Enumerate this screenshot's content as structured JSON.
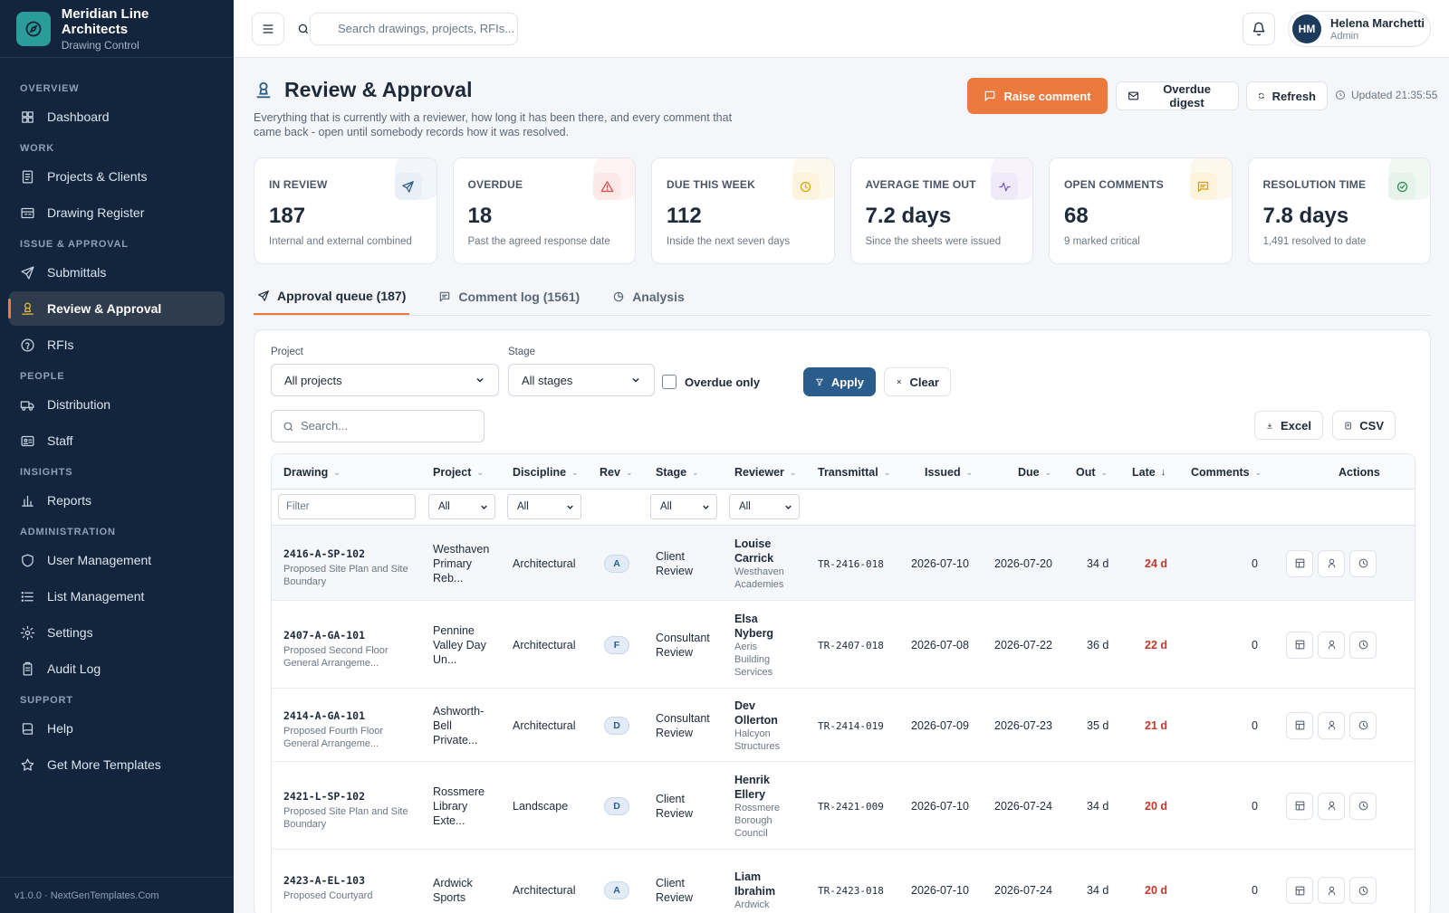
{
  "brand": {
    "title": "Meridian Line Architects",
    "subtitle": "Drawing Control"
  },
  "sidebar": {
    "sections": [
      {
        "label": "OVERVIEW",
        "items": [
          {
            "label": "Dashboard",
            "icon": "dashboard-icon"
          }
        ]
      },
      {
        "label": "WORK",
        "items": [
          {
            "label": "Projects & Clients",
            "icon": "projects-icon"
          },
          {
            "label": "Drawing Register",
            "icon": "register-icon"
          }
        ]
      },
      {
        "label": "ISSUE & APPROVAL",
        "items": [
          {
            "label": "Submittals",
            "icon": "send-icon"
          },
          {
            "label": "Review & Approval",
            "icon": "stamp-icon",
            "active": true
          },
          {
            "label": "RFIs",
            "icon": "help-circle-icon"
          }
        ]
      },
      {
        "label": "PEOPLE",
        "items": [
          {
            "label": "Distribution",
            "icon": "truck-icon"
          },
          {
            "label": "Staff",
            "icon": "id-card-icon"
          }
        ]
      },
      {
        "label": "INSIGHTS",
        "items": [
          {
            "label": "Reports",
            "icon": "bar-chart-icon"
          }
        ]
      },
      {
        "label": "ADMINISTRATION",
        "items": [
          {
            "label": "User Management",
            "icon": "shield-icon"
          },
          {
            "label": "List Management",
            "icon": "list-icon"
          },
          {
            "label": "Settings",
            "icon": "gear-icon"
          },
          {
            "label": "Audit Log",
            "icon": "clipboard-icon"
          }
        ]
      },
      {
        "label": "SUPPORT",
        "items": [
          {
            "label": "Help",
            "icon": "book-icon"
          },
          {
            "label": "Get More Templates",
            "icon": "star-icon"
          }
        ]
      }
    ],
    "footer": "v1.0.0 · NextGenTemplates.Com"
  },
  "topbar": {
    "search_placeholder": "Search drawings, projects, RFIs...",
    "user": {
      "initials": "HM",
      "name": "Helena Marchetti",
      "role": "Admin"
    }
  },
  "page": {
    "title": "Review & Approval",
    "description": "Everything that is currently with a reviewer, how long it has been there, and every comment that came back - open until somebody records how it was resolved.",
    "raise_label": "Raise comment",
    "digest_label": "Overdue digest",
    "refresh_label": "Refresh",
    "updated": "Updated 21:35:55"
  },
  "kpis": [
    {
      "label": "IN REVIEW",
      "value": "187",
      "sub": "Internal and external combined",
      "icon": "send-icon",
      "color": "#2b5d8c",
      "bg": "#e8eff7"
    },
    {
      "label": "OVERDUE",
      "value": "18",
      "sub": "Past the agreed response date",
      "icon": "alert-triangle-icon",
      "color": "#d9534f",
      "bg": "#fbe9e8"
    },
    {
      "label": "DUE THIS WEEK",
      "value": "112",
      "sub": "Inside the next seven days",
      "icon": "clock-icon",
      "color": "#d9a400",
      "bg": "#fbf3dc"
    },
    {
      "label": "AVERAGE TIME OUT",
      "value": "7.2 days",
      "sub": "Since the sheets were issued",
      "icon": "activity-icon",
      "color": "#7b5cc4",
      "bg": "#efeaf8"
    },
    {
      "label": "OPEN COMMENTS",
      "value": "68",
      "sub": "9 marked critical",
      "icon": "comment-icon",
      "color": "#d9a400",
      "bg": "#fbf3dc"
    },
    {
      "label": "RESOLUTION TIME",
      "value": "7.8 days",
      "sub": "1,491 resolved to date",
      "icon": "check-circle-icon",
      "color": "#2e8b57",
      "bg": "#e5f3ea"
    }
  ],
  "tabs": [
    {
      "label": "Approval queue (187)",
      "icon": "send-icon",
      "active": true
    },
    {
      "label": "Comment log (1561)",
      "icon": "comment-icon"
    },
    {
      "label": "Analysis",
      "icon": "pie-icon"
    }
  ],
  "filters": {
    "project_label": "Project",
    "project_value": "All projects",
    "stage_label": "Stage",
    "stage_value": "All stages",
    "overdue_label": "Overdue only",
    "apply_label": "Apply",
    "clear_label": "Clear",
    "search_placeholder": "Search...",
    "excel_label": "Excel",
    "csv_label": "CSV"
  },
  "table": {
    "columns": [
      "Drawing",
      "Project",
      "Discipline",
      "Rev",
      "Stage",
      "Reviewer",
      "Transmittal",
      "Issued",
      "Due",
      "Out",
      "Late",
      "Comments",
      "Actions"
    ],
    "filter_placeholder": "Filter",
    "filter_all": "All",
    "rows": [
      {
        "code": "2416-A-SP-102",
        "title": "Proposed Site Plan and Site Boundary",
        "project": [
          "Westhaven",
          "Primary",
          "Reb..."
        ],
        "discipline": "Architectural",
        "rev": "A",
        "stage": [
          "Client",
          "Review"
        ],
        "reviewer": [
          "Louise",
          "Carrick"
        ],
        "org": [
          "Westhaven",
          "Academies"
        ],
        "transmittal": "TR-2416-018",
        "issued": "2026-07-10",
        "due": "2026-07-20",
        "out": "34 d",
        "late": "24 d",
        "comments": "0",
        "highlight": true
      },
      {
        "code": "2407-A-GA-101",
        "title": "Proposed Second Floor General Arrangeme...",
        "project": [
          "Pennine",
          "Valley Day",
          "Un..."
        ],
        "discipline": "Architectural",
        "rev": "F",
        "stage": [
          "Consultant",
          "Review"
        ],
        "reviewer": [
          "Elsa",
          "Nyberg"
        ],
        "org": [
          "Aeris",
          "Building",
          "Services"
        ],
        "transmittal": "TR-2407-018",
        "issued": "2026-07-08",
        "due": "2026-07-22",
        "out": "36 d",
        "late": "22 d",
        "comments": "0"
      },
      {
        "code": "2414-A-GA-101",
        "title": "Proposed Fourth Floor General Arrangeme...",
        "project": [
          "Ashworth-",
          "Bell",
          "Private..."
        ],
        "discipline": "Architectural",
        "rev": "D",
        "stage": [
          "Consultant",
          "Review"
        ],
        "reviewer": [
          "Dev",
          "Ollerton"
        ],
        "org": [
          "Halcyon",
          "Structures"
        ],
        "transmittal": "TR-2414-019",
        "issued": "2026-07-09",
        "due": "2026-07-23",
        "out": "35 d",
        "late": "21 d",
        "comments": "0"
      },
      {
        "code": "2421-L-SP-102",
        "title": "Proposed Site Plan and Site Boundary",
        "project": [
          "Rossmere",
          "Library",
          "Exte..."
        ],
        "discipline": "Landscape",
        "rev": "D",
        "stage": [
          "Client",
          "Review"
        ],
        "reviewer": [
          "Henrik",
          "Ellery"
        ],
        "org": [
          "Rossmere",
          "Borough",
          "Council"
        ],
        "transmittal": "TR-2421-009",
        "issued": "2026-07-10",
        "due": "2026-07-24",
        "out": "34 d",
        "late": "20 d",
        "comments": "0"
      },
      {
        "code": "2423-A-EL-103",
        "title": "Proposed Courtyard",
        "project": [
          "Ardwick",
          "Sports"
        ],
        "discipline": "Architectural",
        "rev": "A",
        "stage": [
          "Client",
          "Review"
        ],
        "reviewer": [
          "Liam",
          "Ibrahim"
        ],
        "org": [
          "Ardwick"
        ],
        "transmittal": "TR-2423-018",
        "issued": "2026-07-10",
        "due": "2026-07-24",
        "out": "34 d",
        "late": "20 d",
        "comments": "0"
      }
    ]
  }
}
